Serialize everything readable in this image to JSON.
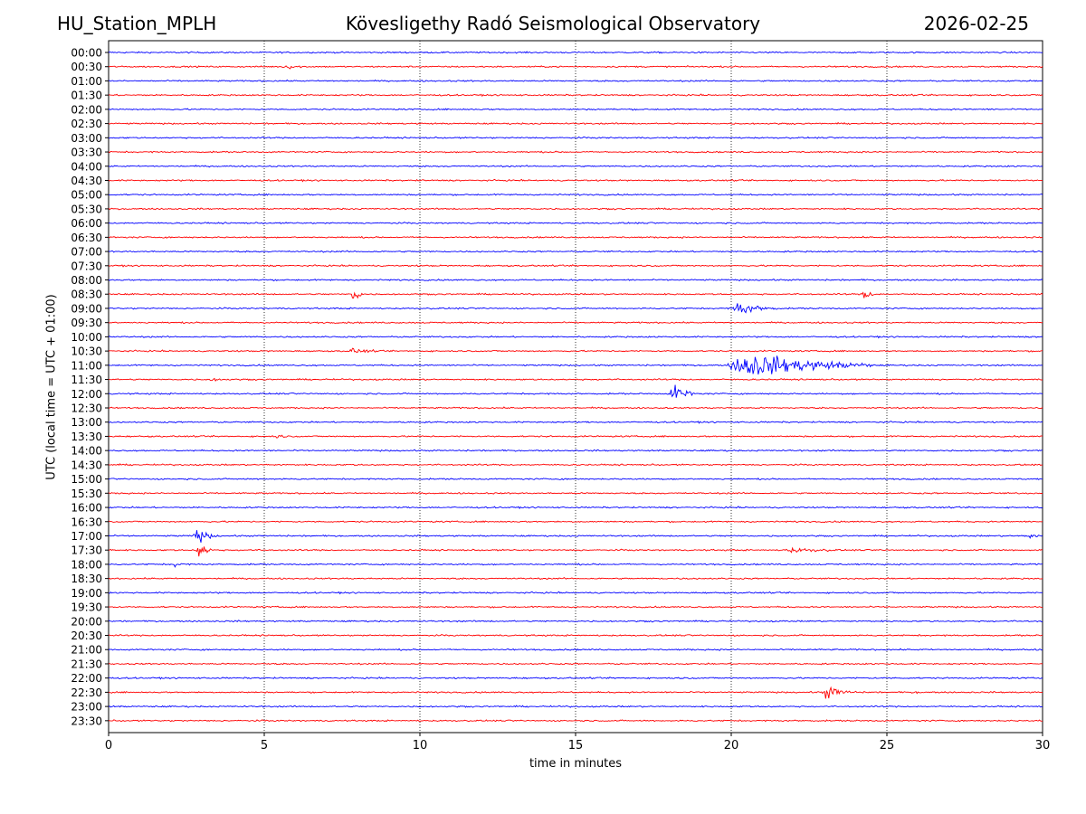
{
  "header": {
    "station": "HU_Station_MPLH",
    "observatory": "Kövesligethy Radó Seismological Observatory",
    "date": "2026-02-25"
  },
  "colors": {
    "trace_a": "#0000ff",
    "trace_b": "#ff0000",
    "axis": "#000000",
    "grid": "#000000"
  },
  "chart_data": {
    "type": "line",
    "title": "Kövesligethy Radó Seismological Observatory",
    "xlabel": "time in minutes",
    "ylabel": "UTC (local time = UTC + 01:00)",
    "xlim": [
      0,
      30
    ],
    "xticks": [
      0,
      5,
      10,
      15,
      20,
      25,
      30
    ],
    "grid": "vertical dotted at x ticks",
    "rows": [
      "00:00",
      "00:30",
      "01:00",
      "01:30",
      "02:00",
      "02:30",
      "03:00",
      "03:30",
      "04:00",
      "04:30",
      "05:00",
      "05:30",
      "06:00",
      "06:30",
      "07:00",
      "07:30",
      "08:00",
      "08:30",
      "09:00",
      "09:30",
      "10:00",
      "10:30",
      "11:00",
      "11:30",
      "12:00",
      "12:30",
      "13:00",
      "13:30",
      "14:00",
      "14:30",
      "15:00",
      "15:30",
      "16:00",
      "16:30",
      "17:00",
      "17:30",
      "18:00",
      "18:30",
      "19:00",
      "19:30",
      "20:00",
      "20:30",
      "21:00",
      "21:30",
      "22:00",
      "22:30",
      "23:00",
      "23:30"
    ],
    "row_colors": "alternating blue (full hour) and red (half hour)",
    "noise_amplitude": 0.08,
    "events": [
      {
        "row": "00:30",
        "start_min": 5.5,
        "end_min": 6.8,
        "amplitude": 0.3
      },
      {
        "row": "08:00",
        "start_min": 4.9,
        "end_min": 5.4,
        "amplitude": 0.2
      },
      {
        "row": "08:30",
        "start_min": 7.8,
        "end_min": 8.2,
        "amplitude": 1.2
      },
      {
        "row": "08:30",
        "start_min": 24.2,
        "end_min": 24.6,
        "amplitude": 0.9
      },
      {
        "row": "09:00",
        "start_min": 20.0,
        "end_min": 21.5,
        "amplitude": 0.8
      },
      {
        "row": "10:30",
        "start_min": 7.6,
        "end_min": 9.0,
        "amplitude": 0.35
      },
      {
        "row": "11:00",
        "start_min": 19.8,
        "end_min": 24.5,
        "amplitude": 1.5
      },
      {
        "row": "11:30",
        "start_min": 3.0,
        "end_min": 4.8,
        "amplitude": 0.2
      },
      {
        "row": "12:00",
        "start_min": 18.0,
        "end_min": 18.8,
        "amplitude": 1.4
      },
      {
        "row": "13:30",
        "start_min": 5.3,
        "end_min": 6.1,
        "amplitude": 0.25
      },
      {
        "row": "17:00",
        "start_min": 2.7,
        "end_min": 3.5,
        "amplitude": 0.9
      },
      {
        "row": "17:00",
        "start_min": 29.4,
        "end_min": 30.0,
        "amplitude": 0.5
      },
      {
        "row": "17:30",
        "start_min": 0.0,
        "end_min": 0.3,
        "amplitude": 0.25
      },
      {
        "row": "17:30",
        "start_min": 2.8,
        "end_min": 3.4,
        "amplitude": 1.1
      },
      {
        "row": "17:30",
        "start_min": 21.5,
        "end_min": 24.5,
        "amplitude": 0.3
      },
      {
        "row": "18:00",
        "start_min": 2.0,
        "end_min": 2.8,
        "amplitude": 0.3
      },
      {
        "row": "22:30",
        "start_min": 22.9,
        "end_min": 24.0,
        "amplitude": 0.85
      },
      {
        "row": "22:30",
        "start_min": 25.8,
        "end_min": 26.4,
        "amplitude": 0.2
      }
    ]
  }
}
